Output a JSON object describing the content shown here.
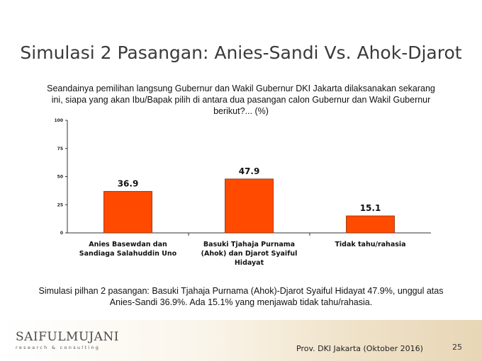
{
  "slide": {
    "title": "Simulasi 2 Pasangan: Anies-Sandi Vs. Ahok-Djarot",
    "question": "Seandainya pemilihan langsung Gubernur dan Wakil Gubernur DKI Jakarta dilaksanakan sekarang ini, siapa yang akan Ibu/Bapak pilih di antara dua pasangan calon Gubernur dan Wakil Gubernur berikut?... (%)",
    "summary": "Simulasi pilhan 2 pasangan: Basuki Tjahaja Purnama (Ahok)-Djarot Syaiful Hidayat 47.9%, unggul atas Anies-Sandi 36.9%. Ada 15.1% yang menjawab tidak tahu/rahasia.",
    "source": "Prov. DKI Jakarta (Oktober 2016)",
    "page_number": "25"
  },
  "logo": {
    "name": "SAIFULMUJANI",
    "tagline": "research & consulting"
  },
  "colors": {
    "bar": "#ff4a00",
    "bar_stroke": "#8a2a00",
    "axis": "#333333"
  },
  "chart_data": {
    "type": "bar",
    "categories": [
      [
        "Anies Basewdan dan",
        "Sandiaga Salahuddin Uno"
      ],
      [
        "Basuki Tjahaja Purnama",
        "(Ahok) dan Djarot Syaiful",
        "Hidayat"
      ],
      [
        "Tidak tahu/rahasia"
      ]
    ],
    "values": [
      36.9,
      47.9,
      15.1
    ],
    "value_labels": [
      "36.9",
      "47.9",
      "15.1"
    ],
    "yticks": [
      "0",
      "25",
      "50",
      "75",
      "100"
    ],
    "ylim": [
      0,
      100
    ],
    "grid": false,
    "legend": "none"
  }
}
